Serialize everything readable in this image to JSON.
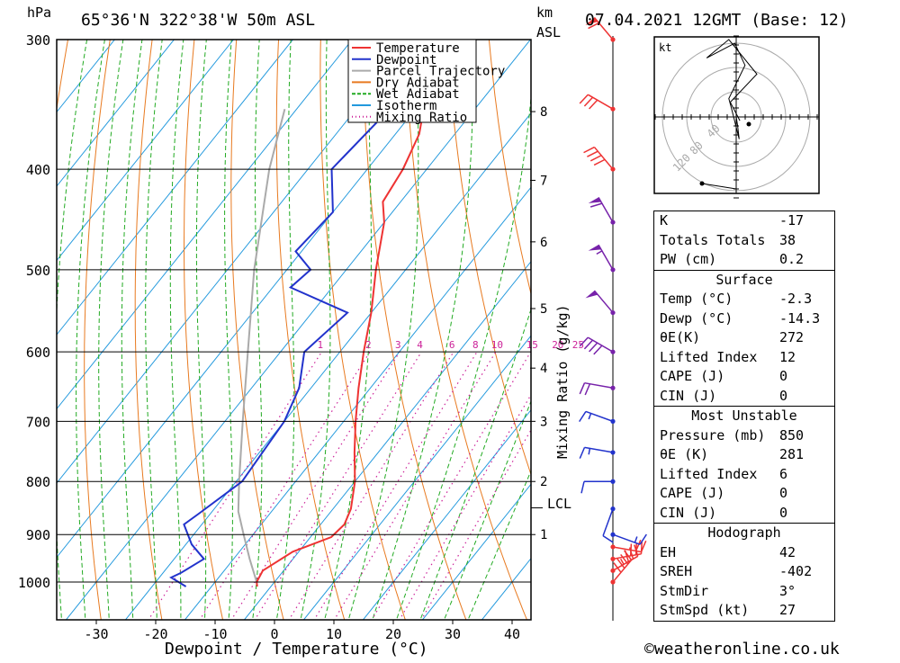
{
  "header": {
    "location": "65°36'N  322°38'W  50m  ASL",
    "datetime": "07.04.2021  12GMT  (Base: 12)",
    "pressure_unit": "hPa",
    "km_label": "km",
    "asl_label": "ASL"
  },
  "footer": {
    "credit": "©weatheronline.co.uk"
  },
  "chart_data": {
    "type": "skew-t",
    "xlabel": "Dewpoint / Temperature (°C)",
    "ylabel": "hPa",
    "x_ticks": [
      -30,
      -20,
      -10,
      0,
      10,
      20,
      30,
      40
    ],
    "pressure_ticks": [
      300,
      400,
      500,
      600,
      700,
      800,
      900,
      1000
    ],
    "km_ticks": [
      {
        "label": "8",
        "p": 352
      },
      {
        "label": "7",
        "p": 410
      },
      {
        "label": "6",
        "p": 470
      },
      {
        "label": "5",
        "p": 545
      },
      {
        "label": "4",
        "p": 622
      },
      {
        "label": "3",
        "p": 700
      },
      {
        "label": "2",
        "p": 800
      },
      {
        "label": "1",
        "p": 900
      }
    ],
    "lcl_label": "LCL",
    "lcl_pressure": 855,
    "mixing_ratio_label": "Mixing Ratio (g/kg)",
    "mixing_ratio_values": [
      "1",
      "2",
      "3",
      "4",
      "6",
      "8",
      "10",
      "15",
      "20",
      "25"
    ],
    "legend": [
      {
        "name": "Temperature",
        "color": "#ee3333",
        "style": "solid"
      },
      {
        "name": "Dewpoint",
        "color": "#2233cc",
        "style": "solid"
      },
      {
        "name": "Parcel Trajectory",
        "color": "#aaaaaa",
        "style": "solid"
      },
      {
        "name": "Dry Adiabat",
        "color": "#e87a20",
        "style": "solid"
      },
      {
        "name": "Wet Adiabat",
        "color": "#22aa22",
        "style": "dashed"
      },
      {
        "name": "Isotherm",
        "color": "#2299dd",
        "style": "solid"
      },
      {
        "name": "Mixing Ratio",
        "color": "#cc2299",
        "style": "dotted"
      }
    ],
    "temperature": [
      {
        "p": 1010,
        "t": -2.3
      },
      {
        "p": 1000,
        "t": -3
      },
      {
        "p": 975,
        "t": -3.5
      },
      {
        "p": 935,
        "t": -1
      },
      {
        "p": 905,
        "t": 3.5
      },
      {
        "p": 880,
        "t": 4
      },
      {
        "p": 850,
        "t": 3
      },
      {
        "p": 800,
        "t": 0
      },
      {
        "p": 750,
        "t": -4
      },
      {
        "p": 700,
        "t": -8
      },
      {
        "p": 650,
        "t": -12
      },
      {
        "p": 600,
        "t": -16
      },
      {
        "p": 550,
        "t": -20
      },
      {
        "p": 500,
        "t": -25
      },
      {
        "p": 450,
        "t": -30
      },
      {
        "p": 430,
        "t": -33
      },
      {
        "p": 400,
        "t": -34
      },
      {
        "p": 370,
        "t": -36
      },
      {
        "p": 340,
        "t": -40
      },
      {
        "p": 310,
        "t": -45
      },
      {
        "p": 300,
        "t": -44
      }
    ],
    "dewpoint": [
      {
        "p": 1010,
        "t": -14.3
      },
      {
        "p": 990,
        "t": -18
      },
      {
        "p": 980,
        "t": -17
      },
      {
        "p": 950,
        "t": -15
      },
      {
        "p": 920,
        "t": -19
      },
      {
        "p": 880,
        "t": -23
      },
      {
        "p": 860,
        "t": -22
      },
      {
        "p": 800,
        "t": -19
      },
      {
        "p": 700,
        "t": -20
      },
      {
        "p": 650,
        "t": -22
      },
      {
        "p": 600,
        "t": -26
      },
      {
        "p": 550,
        "t": -24
      },
      {
        "p": 520,
        "t": -37
      },
      {
        "p": 500,
        "t": -36
      },
      {
        "p": 480,
        "t": -41
      },
      {
        "p": 440,
        "t": -40
      },
      {
        "p": 400,
        "t": -46
      },
      {
        "p": 340,
        "t": -44
      },
      {
        "p": 310,
        "t": -43
      },
      {
        "p": 300,
        "t": -43
      }
    ],
    "parcel": [
      {
        "p": 1000,
        "t": -3
      },
      {
        "p": 950,
        "t": -7.3
      },
      {
        "p": 900,
        "t": -11.6
      },
      {
        "p": 855,
        "t": -15.6
      },
      {
        "p": 800,
        "t": -19.5
      },
      {
        "p": 700,
        "t": -27
      },
      {
        "p": 600,
        "t": -35.5
      },
      {
        "p": 500,
        "t": -45.5
      },
      {
        "p": 400,
        "t": -56.5
      },
      {
        "p": 350,
        "t": -62
      }
    ],
    "hodograph": {
      "unit": "kt",
      "rings": [
        "40",
        "80",
        "120"
      ],
      "trace": [
        [
          0,
          0
        ],
        [
          2,
          -12
        ],
        [
          4,
          -30
        ],
        [
          -6,
          10
        ],
        [
          -10,
          25
        ],
        [
          12,
          70
        ],
        [
          -2,
          100
        ],
        [
          -40,
          80
        ],
        [
          -10,
          105
        ],
        [
          28,
          58
        ],
        [
          -8,
          20
        ],
        [
          5,
          -5
        ]
      ]
    },
    "wind_barbs": [
      {
        "p": 1000,
        "dir": 40,
        "spd": 40
      },
      {
        "p": 975,
        "dir": 60,
        "spd": 35
      },
      {
        "p": 950,
        "dir": 80,
        "spd": 30
      },
      {
        "p": 925,
        "dir": 100,
        "spd": 20
      },
      {
        "p": 900,
        "dir": 110,
        "spd": 15
      },
      {
        "p": 850,
        "dir": 200,
        "spd": 10
      },
      {
        "p": 800,
        "dir": 270,
        "spd": 10
      },
      {
        "p": 750,
        "dir": 280,
        "spd": 15
      },
      {
        "p": 700,
        "dir": 290,
        "spd": 15
      },
      {
        "p": 650,
        "dir": 280,
        "spd": 20
      },
      {
        "p": 600,
        "dir": 300,
        "spd": 40
      },
      {
        "p": 550,
        "dir": 320,
        "spd": 50
      },
      {
        "p": 500,
        "dir": 330,
        "spd": 55
      },
      {
        "p": 450,
        "dir": 330,
        "spd": 60
      },
      {
        "p": 400,
        "dir": 320,
        "spd": 40
      },
      {
        "p": 350,
        "dir": 300,
        "spd": 30
      },
      {
        "p": 300,
        "dir": 320,
        "spd": 60
      }
    ]
  },
  "indices": {
    "top": [
      {
        "label": "K",
        "value": "-17"
      },
      {
        "label": "Totals Totals",
        "value": "38"
      },
      {
        "label": "PW (cm)",
        "value": "0.2"
      }
    ],
    "surface": {
      "title": "Surface",
      "rows": [
        {
          "label": "Temp (°C)",
          "value": "-2.3"
        },
        {
          "label": "Dewp (°C)",
          "value": "-14.3"
        },
        {
          "label": "θE(K)",
          "value": "272"
        },
        {
          "label": "Lifted Index",
          "value": "12"
        },
        {
          "label": "CAPE (J)",
          "value": "0"
        },
        {
          "label": "CIN (J)",
          "value": "0"
        }
      ]
    },
    "most_unstable": {
      "title": "Most Unstable",
      "rows": [
        {
          "label": "Pressure (mb)",
          "value": "850"
        },
        {
          "label": "θE (K)",
          "value": "281"
        },
        {
          "label": "Lifted Index",
          "value": "6"
        },
        {
          "label": "CAPE (J)",
          "value": "0"
        },
        {
          "label": "CIN (J)",
          "value": "0"
        }
      ]
    },
    "hodograph": {
      "title": "Hodograph",
      "rows": [
        {
          "label": "EH",
          "value": "42"
        },
        {
          "label": "SREH",
          "value": "-402"
        },
        {
          "label": "StmDir",
          "value": "3°"
        },
        {
          "label": "StmSpd (kt)",
          "value": "27"
        }
      ]
    }
  },
  "colors": {
    "temperature": "#ee3333",
    "dewpoint": "#2233cc",
    "parcel": "#aaaaaa",
    "dry_adiabat": "#e87a20",
    "wet_adiabat": "#22aa22",
    "isotherm": "#2299dd",
    "mixing_ratio": "#cc2299"
  }
}
